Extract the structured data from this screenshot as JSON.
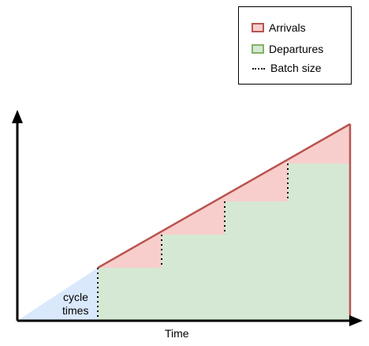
{
  "legend": {
    "arrivals": "Arrivals",
    "departures": "Departures",
    "batch_size": "Batch size"
  },
  "annotations": {
    "cycle_line1": "cycle",
    "cycle_line2": "times",
    "x_axis": "Time"
  },
  "colors": {
    "arrivals_fill": "#f8cecc",
    "arrivals_stroke": "#b85450",
    "departures_fill": "#d5e8d4",
    "departures_stroke": "#82b366",
    "cycle_fill": "#dae8fc",
    "axis": "#000000"
  },
  "diagram": {
    "batch_count": 4,
    "cumulative_arrivals_line": true,
    "departure_steps": true
  }
}
